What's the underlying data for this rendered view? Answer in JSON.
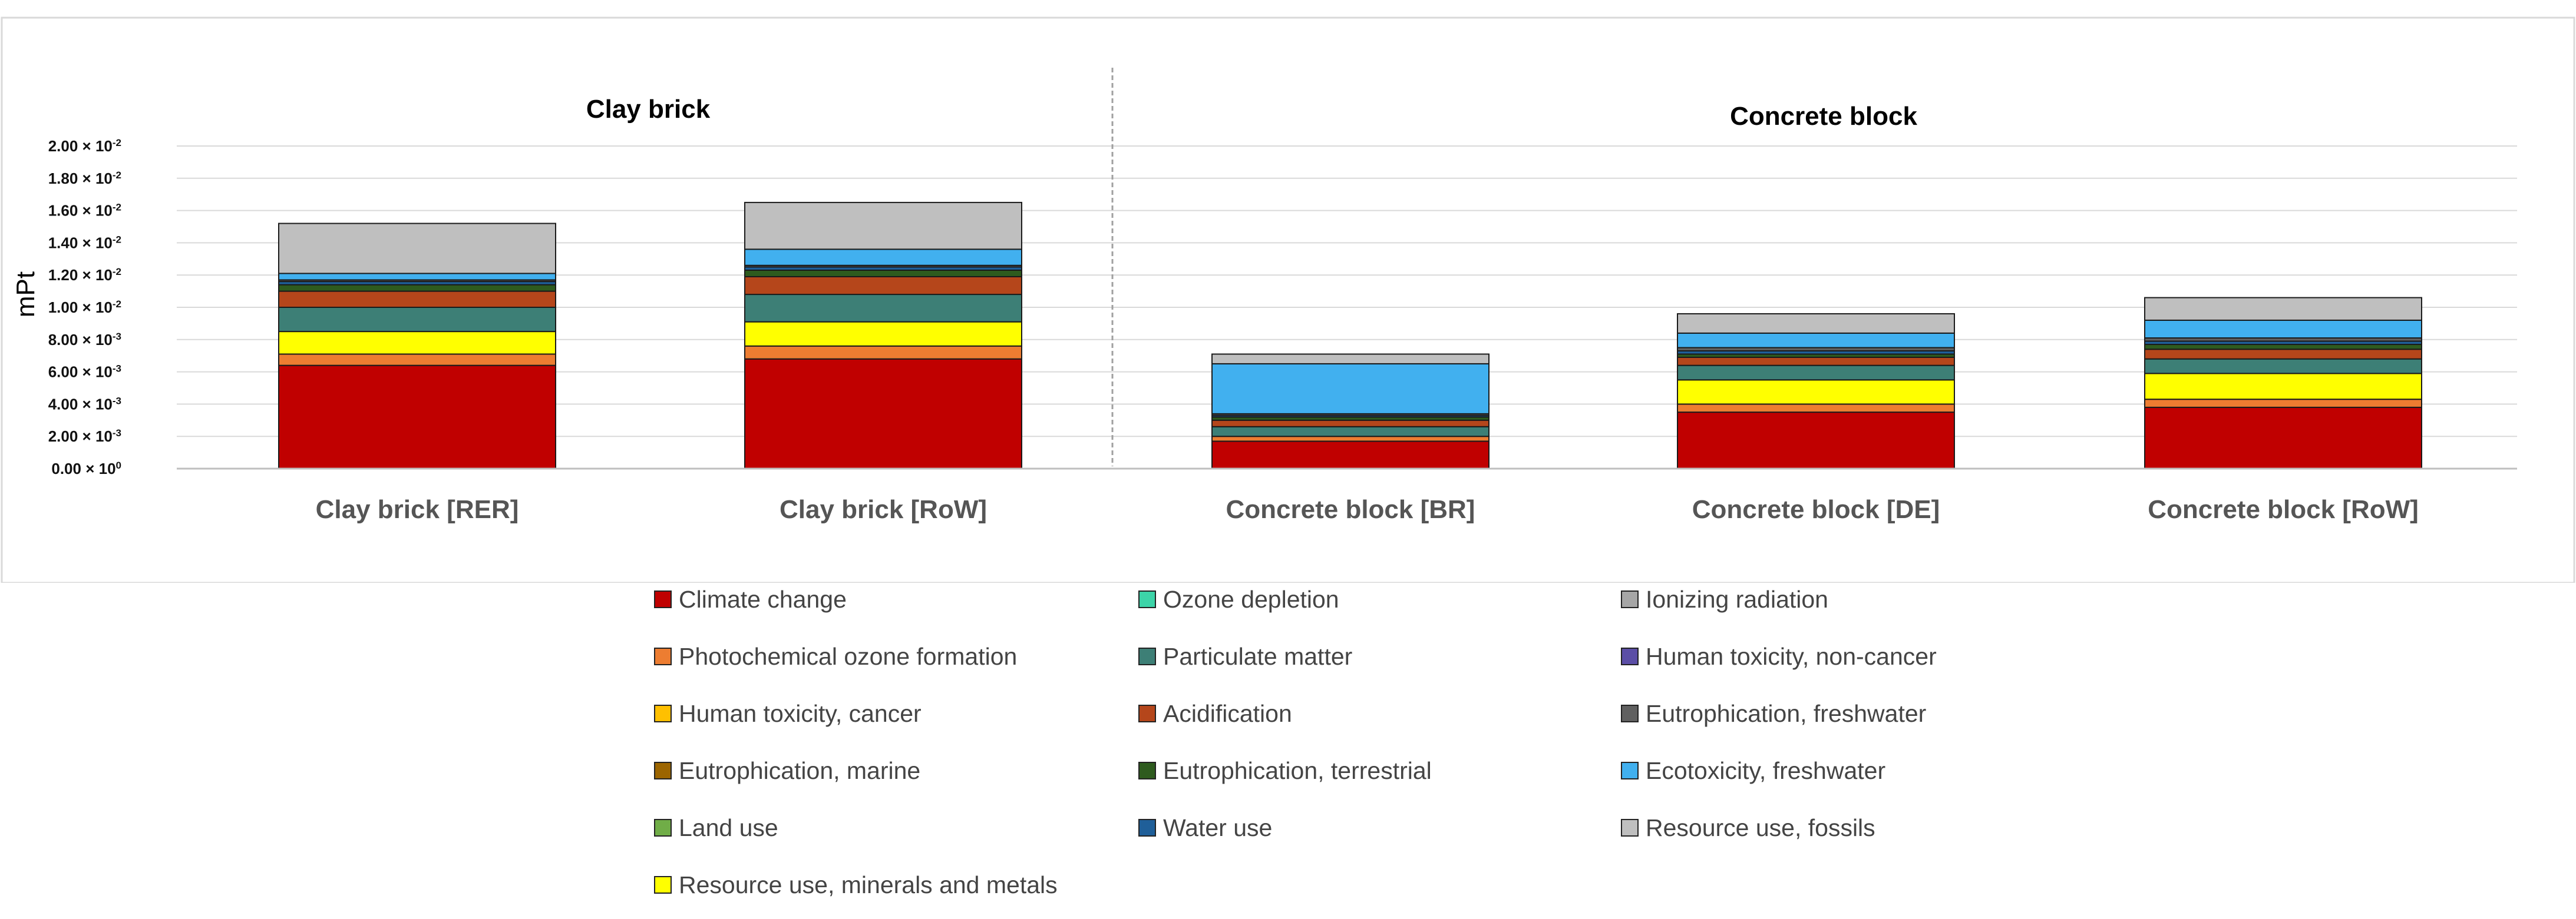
{
  "chart_data": {
    "type": "bar",
    "stacked": true,
    "ylabel": "mPt",
    "xlabel": "",
    "ylim": [
      0,
      0.02
    ],
    "grid": true,
    "legend_position": "bottom",
    "y_ticks": [
      {
        "value": 0.0,
        "mantissa": "0.00",
        "exp": "0"
      },
      {
        "value": 0.002,
        "mantissa": "2.00",
        "exp": "-3"
      },
      {
        "value": 0.004,
        "mantissa": "4.00",
        "exp": "-3"
      },
      {
        "value": 0.006,
        "mantissa": "6.00",
        "exp": "-3"
      },
      {
        "value": 0.008,
        "mantissa": "8.00",
        "exp": "-3"
      },
      {
        "value": 0.01,
        "mantissa": "1.00",
        "exp": "-2"
      },
      {
        "value": 0.012,
        "mantissa": "1.20",
        "exp": "-2"
      },
      {
        "value": 0.014,
        "mantissa": "1.40",
        "exp": "-2"
      },
      {
        "value": 0.016,
        "mantissa": "1.60",
        "exp": "-2"
      },
      {
        "value": 0.018,
        "mantissa": "1.80",
        "exp": "-2"
      },
      {
        "value": 0.02,
        "mantissa": "2.00",
        "exp": "-2"
      }
    ],
    "groups": [
      {
        "label": "Clay brick",
        "categories": [
          0,
          1
        ]
      },
      {
        "label": "Concrete block",
        "categories": [
          2,
          3,
          4
        ]
      }
    ],
    "categories": [
      "Clay brick [RER]",
      "Clay brick [RoW]",
      "Concrete block [BR]",
      "Concrete block [DE]",
      "Concrete block [RoW]"
    ],
    "series": [
      {
        "name": "Climate change",
        "color": "#c00000",
        "values": [
          0.0064,
          0.0068,
          0.0017,
          0.0035,
          0.0038
        ]
      },
      {
        "name": "Photochemical ozone formation",
        "color": "#ed7d31",
        "values": [
          0.0007,
          0.0008,
          0.0003,
          0.0005,
          0.0005
        ]
      },
      {
        "name": "Human toxicity, cancer",
        "color": "#ffc000",
        "values": [
          0.0,
          0.0,
          0.0,
          0.0,
          0.0
        ]
      },
      {
        "name": "Eutrophication, marine",
        "color": "#9c6500",
        "values": [
          0.0,
          0.0,
          0.0,
          0.0,
          0.0
        ]
      },
      {
        "name": "Land use",
        "color": "#70ad47",
        "values": [
          0.0,
          0.0,
          0.0,
          0.0,
          0.0
        ]
      },
      {
        "name": "Resource use, minerals and metals",
        "color": "#ffff00",
        "values": [
          0.0014,
          0.0015,
          0.0,
          0.0015,
          0.0016
        ]
      },
      {
        "name": "Ozone depletion",
        "color": "#3cd4a8",
        "values": [
          0.0,
          0.0,
          0.0,
          0.0,
          0.0
        ]
      },
      {
        "name": "Particulate matter",
        "color": "#3d7f76",
        "values": [
          0.0015,
          0.0017,
          0.0006,
          0.0009,
          0.0009
        ]
      },
      {
        "name": "Acidification",
        "color": "#b5461b",
        "values": [
          0.001,
          0.0011,
          0.0004,
          0.0005,
          0.0006
        ]
      },
      {
        "name": "Eutrophication, terrestrial",
        "color": "#2e5b1e",
        "values": [
          0.0004,
          0.0004,
          0.0002,
          0.0002,
          0.0003
        ]
      },
      {
        "name": "Water use",
        "color": "#1f5f99",
        "values": [
          0.0002,
          0.0002,
          0.0001,
          0.0002,
          0.0002
        ]
      },
      {
        "name": "Ionizing radiation",
        "color": "#a6a6a6",
        "values": [
          0.0,
          0.0,
          0.0,
          0.0,
          0.0
        ]
      },
      {
        "name": "Human toxicity, non-cancer",
        "color": "#5b4ea6",
        "values": [
          0.0,
          0.0,
          0.0,
          0.0,
          0.0
        ]
      },
      {
        "name": "Eutrophication, freshwater",
        "color": "#606060",
        "values": [
          0.0001,
          0.0001,
          0.0001,
          0.0002,
          0.0002
        ]
      },
      {
        "name": "Ecotoxicity, freshwater",
        "color": "#41b0ef",
        "values": [
          0.0004,
          0.001,
          0.0031,
          0.0009,
          0.0011
        ]
      },
      {
        "name": "Resource use, fossils",
        "color": "#bfbfbf",
        "values": [
          0.0031,
          0.0029,
          0.0006,
          0.0012,
          0.0014
        ]
      }
    ],
    "legend": [
      "Climate change",
      "Ozone depletion",
      "Ionizing radiation",
      "Photochemical ozone formation",
      "Particulate matter",
      "Human toxicity, non-cancer",
      "Human toxicity, cancer",
      "Acidification",
      "Eutrophication, freshwater",
      "Eutrophication, marine",
      "Eutrophication, terrestrial",
      "Ecotoxicity, freshwater",
      "Land use",
      "Water use",
      "Resource use, fossils",
      "Resource use, minerals and metals"
    ]
  }
}
